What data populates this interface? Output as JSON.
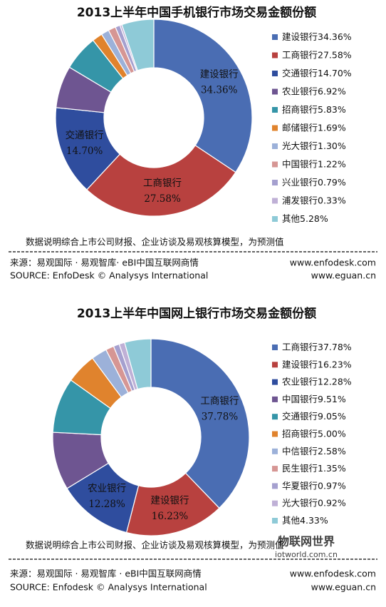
{
  "chart_data": [
    {
      "type": "pie",
      "donut": true,
      "title": "2013上半年中国手机银行市场交易金额份额",
      "categories": [
        "建设银行",
        "工商银行",
        "交通银行",
        "农业银行",
        "招商银行",
        "邮储银行",
        "光大银行",
        "中国银行",
        "兴业银行",
        "浦发银行",
        "其他"
      ],
      "values": [
        34.36,
        27.58,
        14.7,
        6.92,
        5.83,
        1.69,
        1.3,
        1.22,
        0.79,
        0.33,
        5.28
      ],
      "value_labels": [
        "34.36%",
        "27.58%",
        "14.70%",
        "6.92%",
        "5.83%",
        "1.69%",
        "1.30%",
        "1.22%",
        "0.79%",
        "0.33%",
        "5.28%"
      ],
      "colors": [
        "#4a6db3",
        "#b8413f",
        "#2f4d9e",
        "#6e5591",
        "#3595a8",
        "#e0832d",
        "#9cb1d9",
        "#d69694",
        "#a5a0cf",
        "#bfb0d6",
        "#8ecad7"
      ],
      "note": "数据说明综合上市公司财报、企业访谈及易观核算模型，为预测值",
      "source": "来源：易观国际 · 易观智库· eBI中国互联网商情",
      "source_en": "SOURCE: EnfoDesk © Analysys International",
      "urls": [
        "www.enfodesk.com",
        "www.eguan.cn"
      ]
    },
    {
      "type": "pie",
      "donut": true,
      "title": "2013上半年中国网上银行市场交易金额份额",
      "categories": [
        "工商银行",
        "建设银行",
        "农业银行",
        "中国银行",
        "交通银行",
        "招商银行",
        "中信银行",
        "民生银行",
        "华夏银行",
        "光大银行",
        "其他"
      ],
      "values": [
        37.78,
        16.23,
        12.28,
        9.51,
        9.05,
        5.0,
        2.58,
        1.35,
        0.97,
        0.92,
        4.33
      ],
      "value_labels": [
        "37.78%",
        "16.23%",
        "12.28%",
        "9.51%",
        "9.05%",
        "5.00%",
        "2.58%",
        "1.35%",
        "0.97%",
        "0.92%",
        "4.33%"
      ],
      "colors": [
        "#4a6db3",
        "#b8413f",
        "#2f4d9e",
        "#6e5591",
        "#3595a8",
        "#e0832d",
        "#9cb1d9",
        "#d69694",
        "#a5a0cf",
        "#bfb0d6",
        "#8ecad7"
      ],
      "note": "数据说明综合上市公司财报、企业访谈及易观核算模型，为预测值",
      "source": "来源：易观国际 · 易观智库 · eBI中国互联网商情",
      "source_en": "SOURCE: Enfodesk © Analysys International",
      "urls": [
        "www.enfodesk.com",
        "www.eguan.cn"
      ],
      "watermark": [
        "物联网世界",
        "iotworld.com.cn"
      ]
    }
  ]
}
